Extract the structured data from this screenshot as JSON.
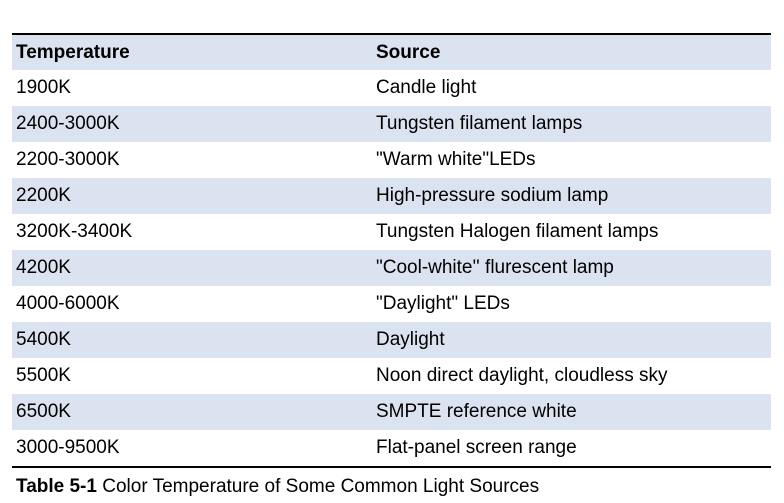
{
  "table": {
    "header": [
      "Temperature",
      "Source"
    ],
    "rows": [
      [
        "1900K",
        "Candle light"
      ],
      [
        "2400-3000K",
        "Tungsten filament lamps"
      ],
      [
        "2200-3000K",
        "\"Warm white\"LEDs"
      ],
      [
        "2200K",
        "High-pressure sodium lamp"
      ],
      [
        "3200K-3400K",
        "Tungsten Halogen filament lamps"
      ],
      [
        "4200K",
        "\"Cool-white'' flurescent lamp"
      ],
      [
        "4000-6000K",
        "\"Daylight\" LEDs"
      ],
      [
        "5400K",
        "Daylight"
      ],
      [
        "5500K",
        "Noon direct daylight, cloudless sky"
      ],
      [
        "6500K",
        "SMPTE reference white"
      ],
      [
        "3000-9500K",
        "Flat-panel screen range"
      ]
    ]
  },
  "caption": {
    "label": "Table 5-1",
    "text": "Color Temperature of Some Common Light Sources"
  }
}
